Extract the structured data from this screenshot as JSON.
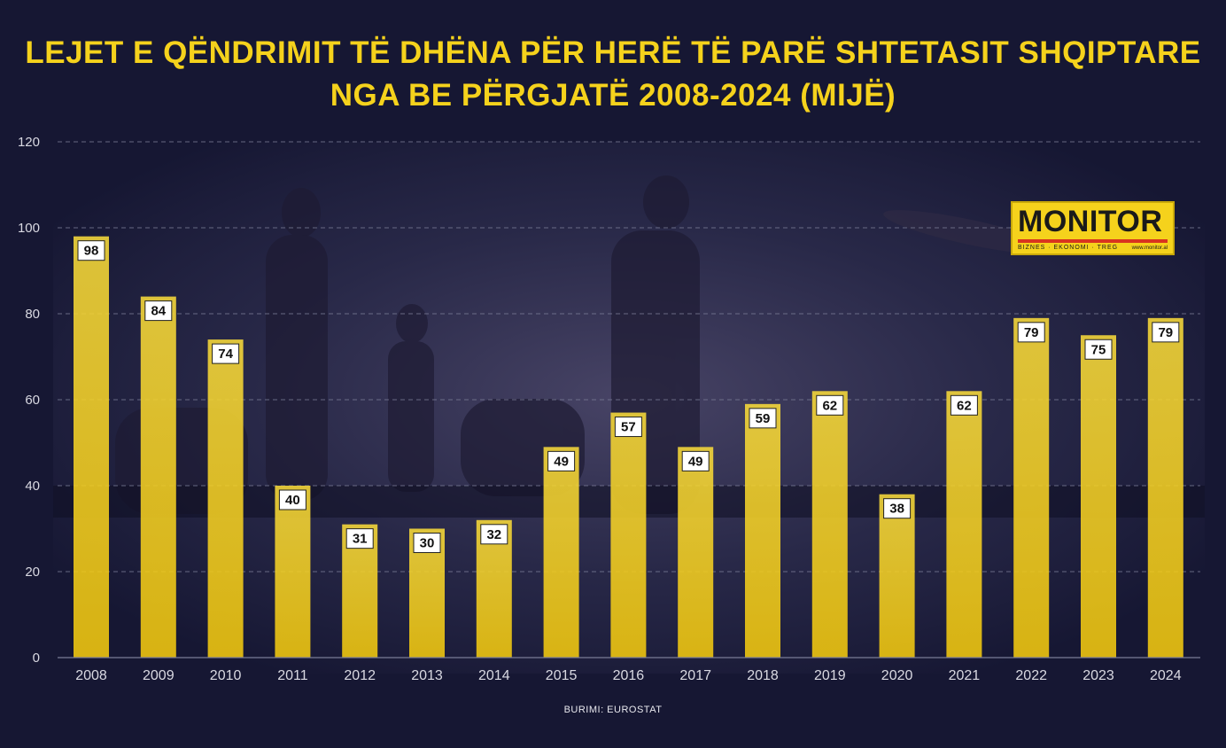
{
  "title": {
    "line1": "LEJET E QËNDRIMIT TË DHËNA PËR HERË TË PARË SHTETASIT SHQIPTARE",
    "line2": "NGA BE PËRGJATË 2008-2024 (MIJË)"
  },
  "source": "BURIMI: EUROSTAT",
  "logo": {
    "word": "MONITOR",
    "tagline": "BIZNES · EKONOMI · TREG",
    "url": "www.monitor.al"
  },
  "colors": {
    "background": "#161733",
    "bar": "#f5d21c",
    "title": "#f5d21c",
    "grid": "#7a7c96",
    "axis_text": "#d9d9e2"
  },
  "chart_data": {
    "type": "bar",
    "title": "LEJET E QËNDRIMIT TË DHËNA PËR HERË TË PARË SHTETASIT SHQIPTARE NGA BE PËRGJATË 2008-2024 (MIJË)",
    "xlabel": "",
    "ylabel": "",
    "ylim": [
      0,
      120
    ],
    "yticks": [
      0,
      20,
      40,
      60,
      80,
      100,
      120
    ],
    "grid": true,
    "categories": [
      "2008",
      "2009",
      "2010",
      "2011",
      "2012",
      "2013",
      "2014",
      "2015",
      "2016",
      "2017",
      "2018",
      "2019",
      "2020",
      "2021",
      "2022",
      "2023",
      "2024"
    ],
    "values": [
      98,
      84,
      74,
      40,
      31,
      30,
      32,
      49,
      57,
      49,
      59,
      62,
      38,
      62,
      79,
      75,
      79
    ]
  }
}
